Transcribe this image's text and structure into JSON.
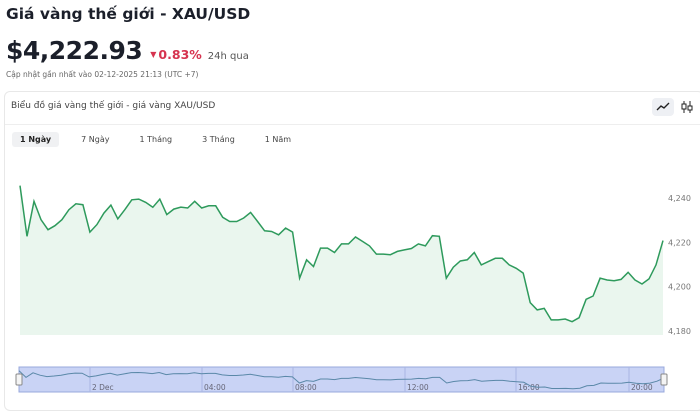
{
  "header": {
    "title": "Giá vàng thế giới - XAU/USD",
    "price": "$4,222.93",
    "change": "0.83%",
    "change_direction": "down",
    "change_color": "#d6334f",
    "period": "24h qua",
    "updated": "Cập nhật gần nhất vào 02-12-2025 21:13 (UTC +7)"
  },
  "card": {
    "title": "Biểu đồ giá vàng thế giới - giá vàng XAU/USD",
    "tools": [
      {
        "icon": "line-chart-icon",
        "active": true
      },
      {
        "icon": "candlestick-icon",
        "active": false
      }
    ],
    "tabs": [
      {
        "label": "1 Ngày",
        "active": true
      },
      {
        "label": "7 Ngày"
      },
      {
        "label": "1 Tháng"
      },
      {
        "label": "3 Tháng"
      },
      {
        "label": "1 Năm"
      }
    ]
  },
  "chart_data": {
    "type": "area",
    "line_color": "#2e9a5c",
    "fill_color": "#eaf6ee",
    "ylim": [
      4178,
      4248
    ],
    "y_ticks": [
      "4,180",
      "4,200",
      "4,220",
      "4,240"
    ],
    "y_tick_values": [
      4180,
      4200,
      4220,
      4240
    ],
    "values": [
      4245.6,
      4222.7,
      4238.5,
      4230.2,
      4225.7,
      4227.5,
      4230.2,
      4234.7,
      4237.4,
      4237.0,
      4224.6,
      4228.0,
      4233.2,
      4236.8,
      4230.6,
      4234.7,
      4239.2,
      4239.5,
      4238.0,
      4235.8,
      4239.5,
      4232.5,
      4235.0,
      4235.9,
      4235.5,
      4238.5,
      4235.5,
      4236.5,
      4236.5,
      4231.3,
      4229.4,
      4229.4,
      4231.0,
      4233.5,
      4229.4,
      4225.2,
      4224.9,
      4223.4,
      4226.4,
      4224.6,
      4203.8,
      4212.1,
      4209.1,
      4217.4,
      4217.4,
      4215.4,
      4219.3,
      4219.3,
      4222.4,
      4220.4,
      4218.4,
      4214.7,
      4214.7,
      4214.4,
      4215.9,
      4216.6,
      4217.2,
      4219.3,
      4218.4,
      4223.0,
      4222.7,
      4203.8,
      4208.8,
      4211.6,
      4212.1,
      4215.4,
      4209.8,
      4211.3,
      4212.8,
      4212.8,
      4209.8,
      4208.3,
      4206.1,
      4192.8,
      4189.5,
      4190.2,
      4185.0,
      4185.0,
      4185.4,
      4184.2,
      4186.0,
      4194.3,
      4195.8,
      4203.8,
      4203.0,
      4202.7,
      4203.3,
      4206.5,
      4203.0,
      4201.2,
      4203.5,
      4209.8,
      4220.8
    ],
    "navigator_labels": [
      "2 Dec",
      "04:00",
      "08:00",
      "12:00",
      "16:00",
      "20:00"
    ]
  }
}
